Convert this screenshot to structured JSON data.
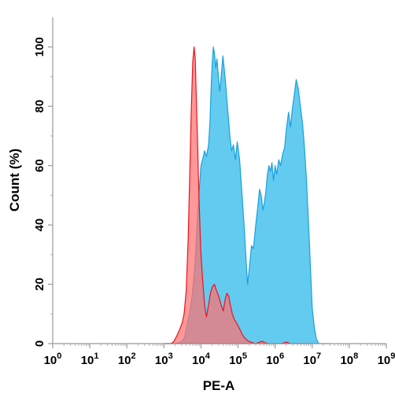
{
  "chart_data": {
    "type": "area",
    "title": "",
    "xlabel": "PE-A",
    "ylabel": "Count (%)",
    "xscale": "log",
    "xlim": [
      1,
      1000000000
    ],
    "ylim": [
      0,
      110
    ],
    "x_tick_labels": [
      {
        "base": "10",
        "exp": "0"
      },
      {
        "base": "10",
        "exp": "1"
      },
      {
        "base": "10",
        "exp": "2"
      },
      {
        "base": "10",
        "exp": "3"
      },
      {
        "base": "10",
        "exp": "4"
      },
      {
        "base": "10",
        "exp": "5"
      },
      {
        "base": "10",
        "exp": "6"
      },
      {
        "base": "10",
        "exp": "7"
      },
      {
        "base": "10",
        "exp": "8"
      },
      {
        "base": "10",
        "exp": "9"
      }
    ],
    "y_ticks": [
      0,
      20,
      40,
      60,
      80,
      100
    ],
    "grid": false,
    "legend": "none",
    "series": [
      {
        "color": "#5bc8ef",
        "edge_color": "#1aa0dc",
        "values": [
          [
            1000,
            0
          ],
          [
            2000,
            0
          ],
          [
            3000,
            0.5
          ],
          [
            3600,
            2
          ],
          [
            4000,
            5
          ],
          [
            4500,
            8
          ],
          [
            5200,
            12
          ],
          [
            6000,
            18
          ],
          [
            7000,
            28
          ],
          [
            8000,
            42
          ],
          [
            9000,
            52
          ],
          [
            10000,
            60
          ],
          [
            11000,
            62
          ],
          [
            12500,
            65
          ],
          [
            14000,
            63
          ],
          [
            16000,
            67
          ],
          [
            17500,
            75
          ],
          [
            19000,
            88
          ],
          [
            20000,
            94
          ],
          [
            21500,
            100
          ],
          [
            23000,
            98
          ],
          [
            25000,
            93
          ],
          [
            27000,
            96
          ],
          [
            29000,
            91
          ],
          [
            32000,
            85
          ],
          [
            35000,
            90
          ],
          [
            39000,
            97
          ],
          [
            42000,
            93
          ],
          [
            46000,
            88
          ],
          [
            50000,
            82
          ],
          [
            55000,
            76
          ],
          [
            60000,
            70
          ],
          [
            67000,
            65
          ],
          [
            75000,
            67
          ],
          [
            85000,
            62
          ],
          [
            95000,
            68
          ],
          [
            110000,
            62
          ],
          [
            125000,
            52
          ],
          [
            145000,
            40
          ],
          [
            165000,
            28
          ],
          [
            180000,
            20
          ],
          [
            200000,
            25
          ],
          [
            230000,
            33
          ],
          [
            260000,
            32
          ],
          [
            300000,
            40
          ],
          [
            340000,
            46
          ],
          [
            380000,
            52
          ],
          [
            420000,
            50
          ],
          [
            470000,
            45
          ],
          [
            520000,
            48
          ],
          [
            570000,
            52
          ],
          [
            620000,
            57
          ],
          [
            680000,
            60
          ],
          [
            750000,
            58
          ],
          [
            820000,
            61
          ],
          [
            900000,
            55
          ],
          [
            1000000,
            60
          ],
          [
            1100000,
            57
          ],
          [
            1250000,
            62
          ],
          [
            1400000,
            60
          ],
          [
            1600000,
            64
          ],
          [
            1800000,
            66
          ],
          [
            2000000,
            72
          ],
          [
            2300000,
            78
          ],
          [
            2600000,
            73
          ],
          [
            2900000,
            79
          ],
          [
            3300000,
            84
          ],
          [
            3700000,
            89
          ],
          [
            4200000,
            86
          ],
          [
            4800000,
            80
          ],
          [
            5500000,
            74
          ],
          [
            6200000,
            66
          ],
          [
            7000000,
            55
          ],
          [
            8000000,
            40
          ],
          [
            9000000,
            25
          ],
          [
            10000000,
            12
          ],
          [
            11500000,
            5
          ],
          [
            13000000,
            1.5
          ],
          [
            15000000,
            0
          ],
          [
            30000000,
            0
          ]
        ]
      },
      {
        "color": "#ff7070",
        "edge_color": "#e8141e",
        "values": [
          [
            1000,
            0
          ],
          [
            1500,
            0
          ],
          [
            1800,
            0.5
          ],
          [
            2000,
            1.5
          ],
          [
            2300,
            3
          ],
          [
            2700,
            5
          ],
          [
            3100,
            7
          ],
          [
            3500,
            10
          ],
          [
            4000,
            18
          ],
          [
            4500,
            35
          ],
          [
            5000,
            58
          ],
          [
            5500,
            80
          ],
          [
            6000,
            95
          ],
          [
            6500,
            100
          ],
          [
            7000,
            96
          ],
          [
            7500,
            82
          ],
          [
            8000,
            70
          ],
          [
            8800,
            50
          ],
          [
            9800,
            32
          ],
          [
            11000,
            22
          ],
          [
            12500,
            13
          ],
          [
            14000,
            9
          ],
          [
            16000,
            13
          ],
          [
            18000,
            17
          ],
          [
            20000,
            19
          ],
          [
            23000,
            20
          ],
          [
            26000,
            18
          ],
          [
            30000,
            16
          ],
          [
            35000,
            13
          ],
          [
            40000,
            11
          ],
          [
            45000,
            15
          ],
          [
            50000,
            17
          ],
          [
            56000,
            16
          ],
          [
            62000,
            13
          ],
          [
            70000,
            10
          ],
          [
            80000,
            8
          ],
          [
            90000,
            7
          ],
          [
            100000,
            6
          ],
          [
            115000,
            4.5
          ],
          [
            130000,
            3
          ],
          [
            150000,
            2
          ],
          [
            180000,
            1
          ],
          [
            220000,
            0.5
          ],
          [
            300000,
            0
          ],
          [
            450000,
            0.8
          ],
          [
            550000,
            0.2
          ],
          [
            700000,
            0
          ],
          [
            1500000,
            0
          ],
          [
            2000000,
            0.5
          ],
          [
            2600000,
            0
          ],
          [
            10000000,
            0
          ]
        ]
      }
    ]
  }
}
